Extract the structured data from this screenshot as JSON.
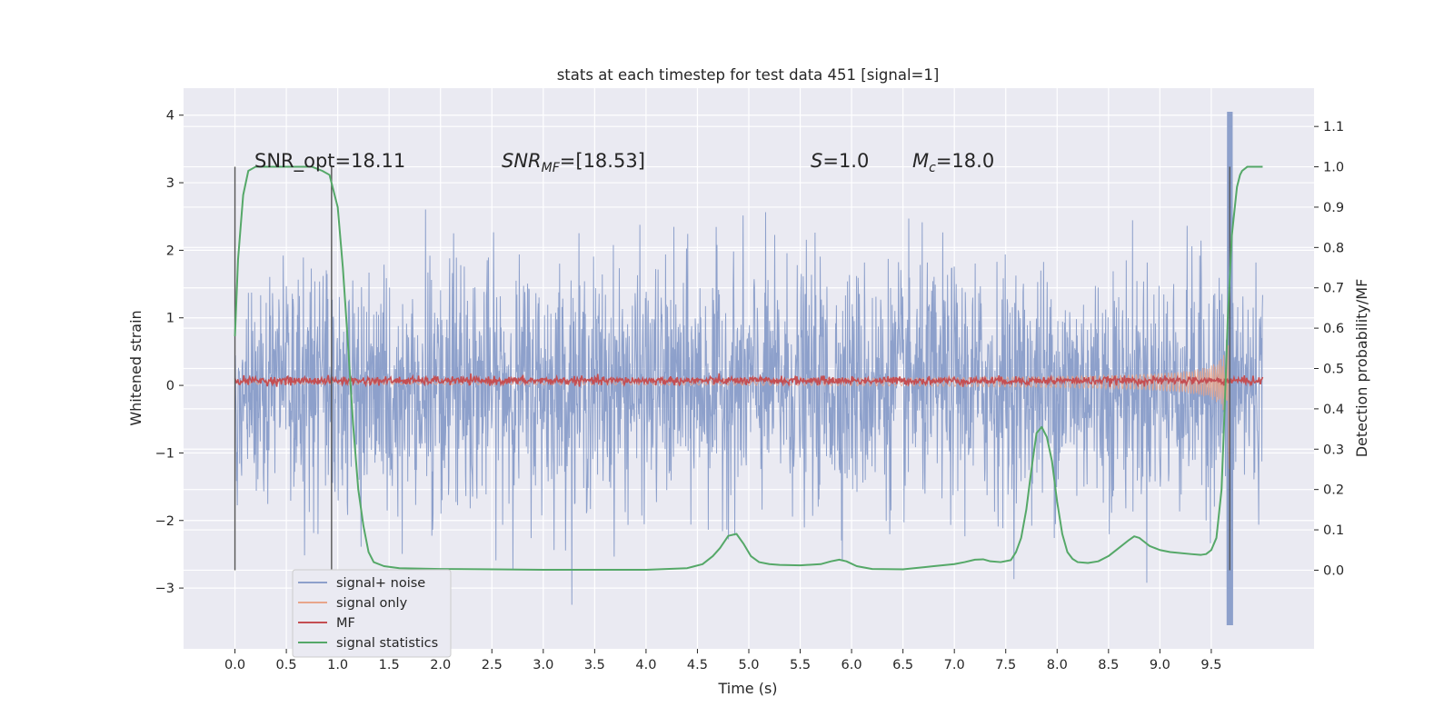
{
  "chart_data": {
    "type": "line",
    "title": "stats at each timestep for test data 451 [signal=1]",
    "xlabel": "Time (s)",
    "ylabel_left": "Whitened strain",
    "ylabel_right": "Detection probability/MF",
    "xlim": [
      -0.5,
      10.5
    ],
    "ylim_left": [
      -3.9,
      4.4
    ],
    "ylim_right": [
      -0.195,
      1.195
    ],
    "x_ticks": [
      "0.0",
      "0.5",
      "1.0",
      "1.5",
      "2.0",
      "2.5",
      "3.0",
      "3.5",
      "4.0",
      "4.5",
      "5.0",
      "5.5",
      "6.0",
      "6.5",
      "7.0",
      "7.5",
      "8.0",
      "8.5",
      "9.0",
      "9.5"
    ],
    "y_ticks_left": [
      "4",
      "3",
      "2",
      "1",
      "0",
      "−1",
      "−2",
      "−3"
    ],
    "y_ticks_right": [
      "1.1",
      "1.0",
      "0.9",
      "0.8",
      "0.7",
      "0.6",
      "0.5",
      "0.4",
      "0.3",
      "0.2",
      "0.1",
      "0.0"
    ],
    "grid": true,
    "legend_position": "lower-left",
    "annotations": [
      {
        "id": "snr-opt",
        "text": "SNR_opt=18.11"
      },
      {
        "id": "snr-mf",
        "text": "SNR_MF=[18.53]"
      },
      {
        "id": "s-value",
        "text": "S=1.0"
      },
      {
        "id": "mc-value",
        "text": "M_c=18.0"
      }
    ],
    "vertical_markers_s": [
      0.0,
      0.94,
      9.68
    ],
    "series": [
      {
        "name": "signal+ noise",
        "color": "#8da0cb",
        "axis": "left",
        "description_values": {
          "x_range": [
            0.0,
            10.0
          ],
          "typical_amplitude": 1.2,
          "peak": 4.05,
          "trough": -3.55
        }
      },
      {
        "name": "signal only",
        "color": "#e8a58b",
        "axis": "left",
        "description_values": {
          "x_range": [
            0.0,
            10.0
          ],
          "chirp_peak_amplitude": 1.7,
          "peak_time": 9.68
        }
      },
      {
        "name": "MF",
        "color": "#c44e52",
        "axis": "left",
        "description_values": {
          "x_range": [
            0.0,
            10.0
          ],
          "level": 0.07,
          "noise": 0.05
        }
      },
      {
        "name": "signal statistics",
        "color": "#55a868",
        "axis": "right",
        "x": [
          0.0,
          0.03,
          0.08,
          0.13,
          0.2,
          0.3,
          0.45,
          0.6,
          0.75,
          0.85,
          0.92,
          1.0,
          1.05,
          1.1,
          1.15,
          1.2,
          1.25,
          1.3,
          1.35,
          1.45,
          1.6,
          2.0,
          2.5,
          3.0,
          3.5,
          4.0,
          4.4,
          4.55,
          4.65,
          4.72,
          4.8,
          4.88,
          4.95,
          5.02,
          5.1,
          5.2,
          5.3,
          5.5,
          5.7,
          5.8,
          5.88,
          5.95,
          6.05,
          6.2,
          6.5,
          6.8,
          7.0,
          7.1,
          7.2,
          7.28,
          7.35,
          7.45,
          7.55,
          7.6,
          7.65,
          7.7,
          7.75,
          7.8,
          7.85,
          7.9,
          7.95,
          8.0,
          8.05,
          8.1,
          8.15,
          8.2,
          8.3,
          8.4,
          8.5,
          8.6,
          8.7,
          8.75,
          8.8,
          8.85,
          8.9,
          9.0,
          9.1,
          9.3,
          9.4,
          9.45,
          9.5,
          9.55,
          9.6,
          9.63,
          9.66,
          9.7,
          9.75,
          9.78,
          9.8,
          9.85,
          9.9,
          9.95,
          10.0
        ],
        "values": [
          0.58,
          0.77,
          0.93,
          0.99,
          1.0,
          1.0,
          1.0,
          1.0,
          1.0,
          0.99,
          0.98,
          0.9,
          0.75,
          0.56,
          0.36,
          0.2,
          0.11,
          0.045,
          0.02,
          0.01,
          0.005,
          0.003,
          0.002,
          0.001,
          0.001,
          0.001,
          0.005,
          0.015,
          0.035,
          0.055,
          0.085,
          0.09,
          0.065,
          0.035,
          0.02,
          0.015,
          0.013,
          0.012,
          0.015,
          0.022,
          0.026,
          0.022,
          0.01,
          0.003,
          0.002,
          0.01,
          0.015,
          0.02,
          0.026,
          0.027,
          0.022,
          0.02,
          0.025,
          0.045,
          0.08,
          0.15,
          0.25,
          0.34,
          0.355,
          0.33,
          0.27,
          0.17,
          0.09,
          0.045,
          0.028,
          0.02,
          0.018,
          0.022,
          0.035,
          0.055,
          0.075,
          0.084,
          0.08,
          0.07,
          0.06,
          0.05,
          0.045,
          0.04,
          0.038,
          0.04,
          0.05,
          0.08,
          0.2,
          0.4,
          0.62,
          0.83,
          0.95,
          0.98,
          0.99,
          1.0,
          1.0,
          1.0,
          1.0
        ]
      }
    ]
  }
}
